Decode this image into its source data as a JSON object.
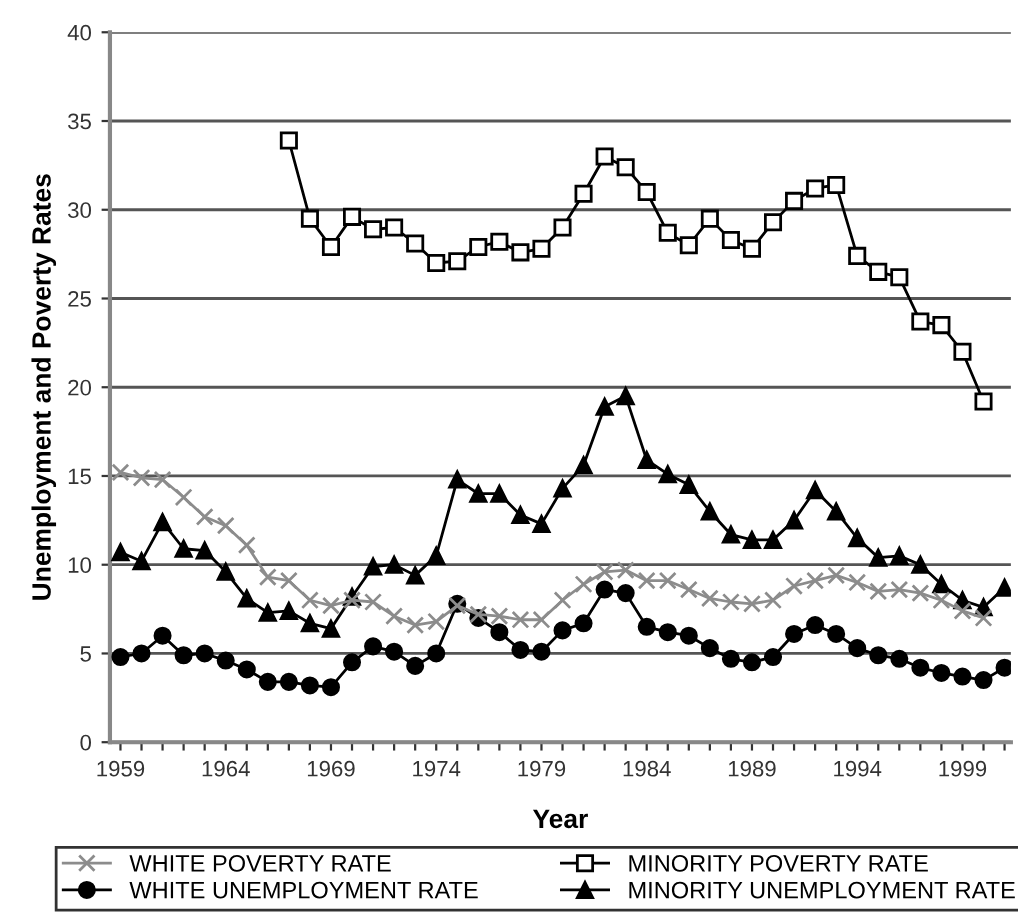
{
  "chart_data": {
    "type": "line",
    "xlabel": "Year",
    "ylabel": "Unemployment and Poverty Rates",
    "xlim": [
      1958.5,
      2001.3
    ],
    "ylim": [
      0,
      40
    ],
    "yticks": [
      0,
      5,
      10,
      15,
      20,
      25,
      30,
      35,
      40
    ],
    "xticks": [
      1959,
      {
        "value": 1960,
        "label": null
      },
      {
        "value": 1961,
        "label": null
      },
      {
        "value": 1962,
        "label": null
      },
      {
        "value": 1963,
        "label": null
      },
      1964,
      {
        "value": 1965,
        "label": null
      },
      {
        "value": 1966,
        "label": null
      },
      {
        "value": 1967,
        "label": null
      },
      {
        "value": 1968,
        "label": null
      },
      1969,
      {
        "value": 1970,
        "label": null
      },
      {
        "value": 1971,
        "label": null
      },
      {
        "value": 1972,
        "label": null
      },
      {
        "value": 1973,
        "label": null
      },
      1974,
      {
        "value": 1975,
        "label": null
      },
      {
        "value": 1976,
        "label": null
      },
      {
        "value": 1977,
        "label": null
      },
      {
        "value": 1978,
        "label": null
      },
      1979,
      {
        "value": 1980,
        "label": null
      },
      {
        "value": 1981,
        "label": null
      },
      {
        "value": 1982,
        "label": null
      },
      {
        "value": 1983,
        "label": null
      },
      1984,
      {
        "value": 1985,
        "label": null
      },
      {
        "value": 1986,
        "label": null
      },
      {
        "value": 1987,
        "label": null
      },
      {
        "value": 1988,
        "label": null
      },
      1989,
      {
        "value": 1990,
        "label": null
      },
      {
        "value": 1991,
        "label": null
      },
      {
        "value": 1992,
        "label": null
      },
      {
        "value": 1993,
        "label": null
      },
      1994,
      {
        "value": 1995,
        "label": null
      },
      {
        "value": 1996,
        "label": null
      },
      {
        "value": 1997,
        "label": null
      },
      {
        "value": 1998,
        "label": null
      },
      1999,
      {
        "value": 2000,
        "label": null
      },
      {
        "value": 2001,
        "label": null
      }
    ],
    "grid": "y",
    "legend": "bottom",
    "line_style": "solid",
    "series": [
      {
        "name": "WHITE POVERTY RATE",
        "color": "#8c8c8c",
        "marker": "cross",
        "x": [
          1959,
          1960,
          1961,
          1962,
          1963,
          1964,
          1965,
          1966,
          1967,
          1968,
          1969,
          1970,
          1971,
          1972,
          1973,
          1974,
          1975,
          1976,
          1977,
          1978,
          1979,
          1980,
          1981,
          1982,
          1983,
          1984,
          1985,
          1986,
          1987,
          1988,
          1989,
          1990,
          1991,
          1992,
          1993,
          1994,
          1995,
          1996,
          1997,
          1998,
          1999,
          2000
        ],
        "values": [
          15.2,
          14.9,
          14.8,
          13.8,
          12.7,
          12.2,
          11.1,
          9.3,
          9.1,
          8.0,
          7.7,
          8.0,
          7.9,
          7.1,
          6.6,
          6.8,
          7.7,
          7.2,
          7.1,
          6.9,
          6.9,
          8.0,
          8.9,
          9.6,
          9.7,
          9.1,
          9.1,
          8.6,
          8.1,
          7.9,
          7.8,
          8.0,
          8.8,
          9.1,
          9.4,
          9.0,
          8.5,
          8.6,
          8.4,
          8.0,
          7.4,
          7.0
        ]
      },
      {
        "name": "MINORITY POVERTY RATE",
        "color": "#000000",
        "marker": "square",
        "x": [
          1967,
          1968,
          1969,
          1970,
          1971,
          1972,
          1973,
          1974,
          1975,
          1976,
          1977,
          1978,
          1979,
          1980,
          1981,
          1982,
          1983,
          1984,
          1985,
          1986,
          1987,
          1988,
          1989,
          1990,
          1991,
          1992,
          1993,
          1994,
          1995,
          1996,
          1997,
          1998,
          1999,
          2000
        ],
        "values": [
          33.9,
          29.5,
          27.9,
          29.6,
          28.9,
          29.0,
          28.1,
          27.0,
          27.1,
          27.9,
          28.2,
          27.6,
          27.8,
          29.0,
          30.9,
          33.0,
          32.4,
          31.0,
          28.7,
          28.0,
          29.5,
          28.3,
          27.8,
          29.3,
          30.5,
          31.2,
          31.4,
          27.4,
          26.5,
          26.2,
          23.7,
          23.5,
          22.0,
          19.2
        ]
      },
      {
        "name": "WHITE UNEMPLOYMENT RATE",
        "color": "#000000",
        "marker": "circle",
        "x": [
          1959,
          1960,
          1961,
          1962,
          1963,
          1964,
          1965,
          1966,
          1967,
          1968,
          1969,
          1970,
          1971,
          1972,
          1973,
          1974,
          1975,
          1976,
          1977,
          1978,
          1979,
          1980,
          1981,
          1982,
          1983,
          1984,
          1985,
          1986,
          1987,
          1988,
          1989,
          1990,
          1991,
          1992,
          1993,
          1994,
          1995,
          1996,
          1997,
          1998,
          1999,
          2000,
          2001
        ],
        "values": [
          4.8,
          5.0,
          6.0,
          4.9,
          5.0,
          4.6,
          4.1,
          3.4,
          3.4,
          3.2,
          3.1,
          4.5,
          5.4,
          5.1,
          4.3,
          5.0,
          7.8,
          7.0,
          6.2,
          5.2,
          5.1,
          6.3,
          6.7,
          8.6,
          8.4,
          6.5,
          6.2,
          6.0,
          5.3,
          4.7,
          4.5,
          4.8,
          6.1,
          6.6,
          6.1,
          5.3,
          4.9,
          4.7,
          4.2,
          3.9,
          3.7,
          3.5,
          4.2
        ]
      },
      {
        "name": "MINORITY UNEMPLOYMENT RATE",
        "color": "#000000",
        "marker": "triangle",
        "x": [
          1959,
          1960,
          1961,
          1962,
          1963,
          1964,
          1965,
          1966,
          1967,
          1968,
          1969,
          1970,
          1971,
          1972,
          1973,
          1974,
          1975,
          1976,
          1977,
          1978,
          1979,
          1980,
          1981,
          1982,
          1983,
          1984,
          1985,
          1986,
          1987,
          1988,
          1989,
          1990,
          1991,
          1992,
          1993,
          1994,
          1995,
          1996,
          1997,
          1998,
          1999,
          2000,
          2001
        ],
        "values": [
          10.7,
          10.2,
          12.4,
          10.9,
          10.8,
          9.6,
          8.1,
          7.3,
          7.4,
          6.7,
          6.4,
          8.2,
          9.9,
          10.0,
          9.4,
          10.5,
          14.8,
          14.0,
          14.0,
          12.8,
          12.3,
          14.3,
          15.6,
          18.9,
          19.5,
          15.9,
          15.1,
          14.5,
          13.0,
          11.7,
          11.4,
          11.4,
          12.5,
          14.2,
          13.0,
          11.5,
          10.4,
          10.5,
          10.0,
          8.9,
          8.0,
          7.6,
          8.7
        ]
      }
    ]
  }
}
